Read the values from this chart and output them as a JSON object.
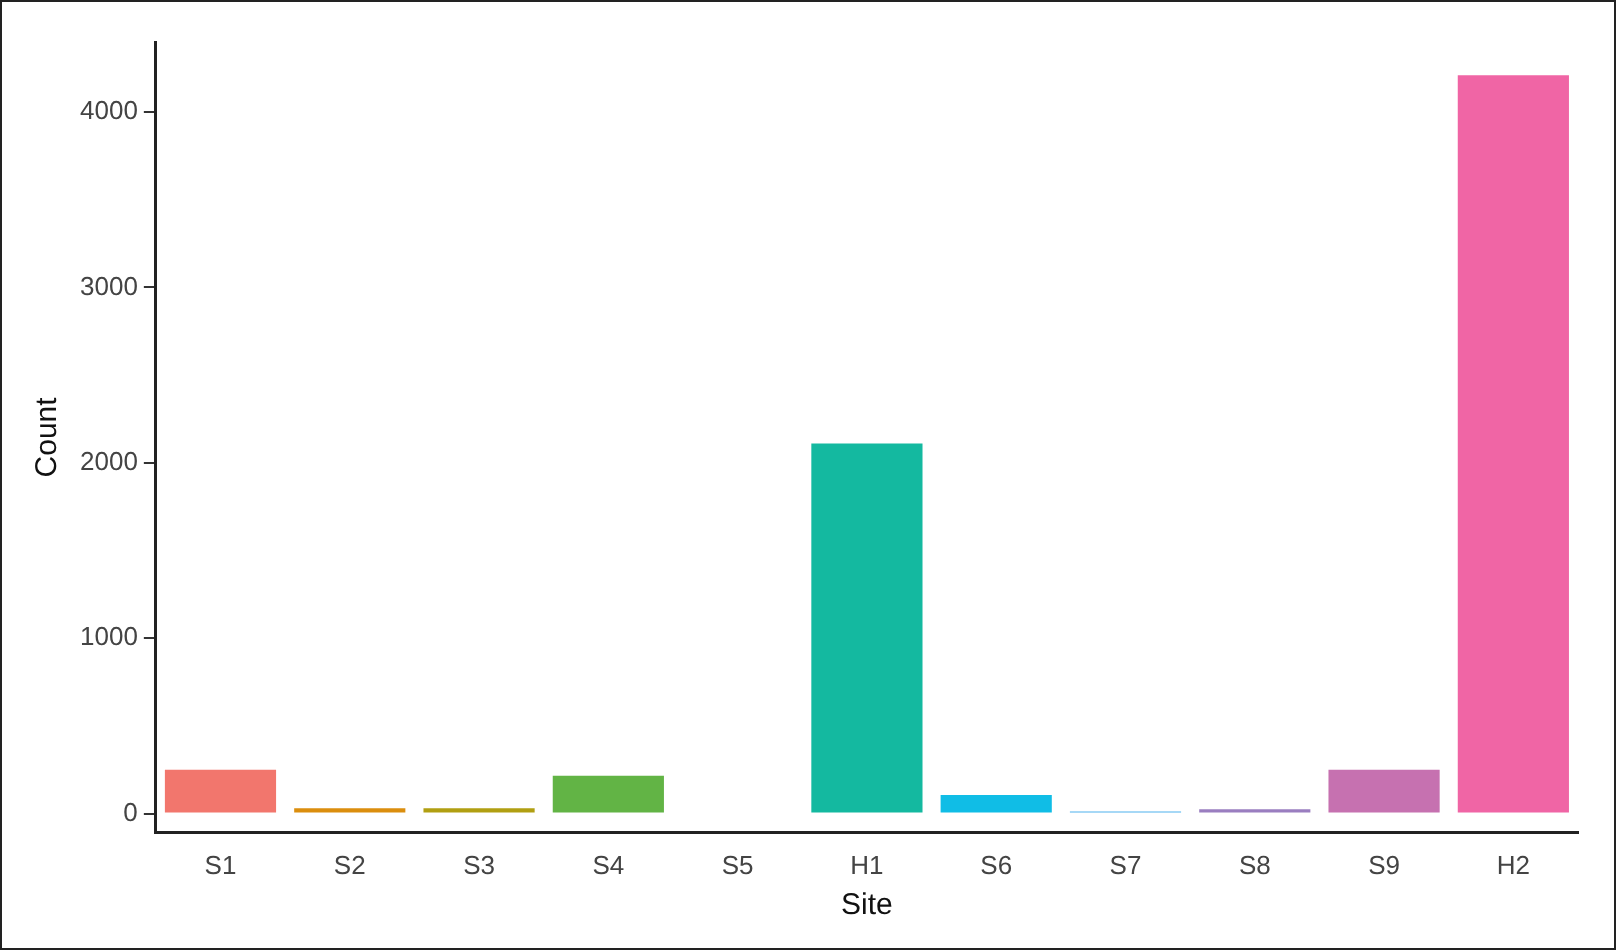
{
  "chart_data": {
    "type": "bar",
    "xlabel": "Site",
    "ylabel": "Count",
    "categories": [
      "S1",
      "S2",
      "S3",
      "S4",
      "S5",
      "H1",
      "S6",
      "S7",
      "S8",
      "S9",
      "H2"
    ],
    "values": [
      250,
      30,
      30,
      215,
      0,
      2110,
      105,
      12,
      25,
      250,
      4210
    ],
    "colors": [
      "#f2766d",
      "#db8e0e",
      "#b19f12",
      "#62b445",
      "#00b985",
      "#14b9a0",
      "#10bde6",
      "#4fb1ee",
      "#9a7ec0",
      "#c671b0",
      "#f065a5"
    ],
    "ylim": [
      -110,
      4400
    ],
    "yticks": [
      0,
      1000,
      2000,
      3000,
      4000
    ],
    "grid": false,
    "legend": false
  }
}
